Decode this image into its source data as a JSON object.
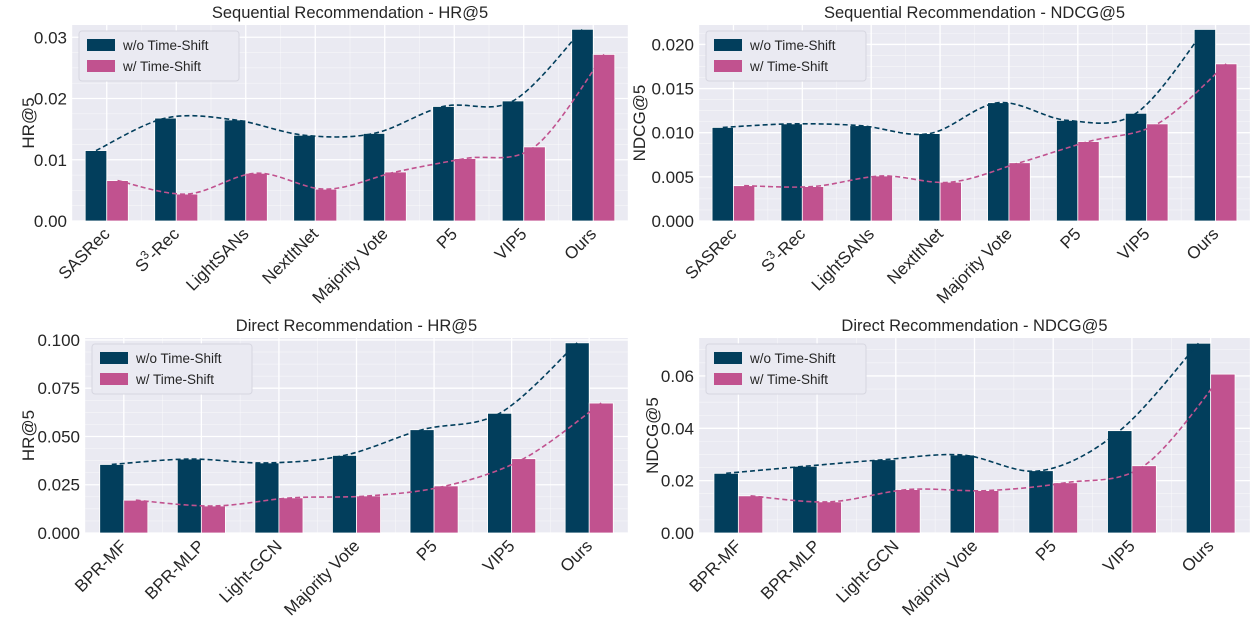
{
  "chart_data": [
    {
      "type": "bar",
      "title": "Sequential Recommendation - HR@5",
      "xlabel": "",
      "ylabel": "HR@5",
      "ylim": [
        0,
        0.032
      ],
      "yticks": [
        "0.00",
        "0.01",
        "0.02",
        "0.03"
      ],
      "categories": [
        "SASRec",
        "S³-Rec",
        "LightSANs",
        "NextItNet",
        "Majority Vote",
        "P5",
        "VIP5",
        "Ours"
      ],
      "series": [
        {
          "name": "w/o Time-Shift",
          "color": "#023e5c",
          "values": [
            0.0115,
            0.0168,
            0.0165,
            0.014,
            0.0143,
            0.0187,
            0.0196,
            0.0313
          ]
        },
        {
          "name": "w/ Time-Shift",
          "color": "#c1528f",
          "values": [
            0.0066,
            0.0044,
            0.0078,
            0.0052,
            0.008,
            0.0102,
            0.0121,
            0.0272
          ]
        }
      ],
      "legend": "top-left",
      "grid": true,
      "trend_lines": true
    },
    {
      "type": "bar",
      "title": "Sequential Recommendation - NDCG@5",
      "xlabel": "",
      "ylabel": "NDCG@5",
      "ylim": [
        0,
        0.0222
      ],
      "yticks": [
        "0.000",
        "0.005",
        "0.010",
        "0.015",
        "0.020"
      ],
      "categories": [
        "SASRec",
        "S³-Rec",
        "LightSANs",
        "NextItNet",
        "Majority Vote",
        "P5",
        "VIP5",
        "Ours"
      ],
      "series": [
        {
          "name": "w/o Time-Shift",
          "color": "#023e5c",
          "values": [
            0.0106,
            0.011,
            0.0108,
            0.0099,
            0.0134,
            0.0114,
            0.0122,
            0.0217
          ]
        },
        {
          "name": "w/ Time-Shift",
          "color": "#c1528f",
          "values": [
            0.004,
            0.0039,
            0.0051,
            0.0044,
            0.0066,
            0.009,
            0.011,
            0.0178
          ]
        }
      ],
      "legend": "top-left",
      "grid": true,
      "trend_lines": true
    },
    {
      "type": "bar",
      "title": "Direct Recommendation - HR@5",
      "xlabel": "",
      "ylabel": "HR@5",
      "ylim": [
        0,
        0.101
      ],
      "yticks": [
        "0.000",
        "0.025",
        "0.050",
        "0.075",
        "0.100"
      ],
      "categories": [
        "BPR-MF",
        "BPR-MLP",
        "Light-GCN",
        "Majority Vote",
        "P5",
        "VIP5",
        "Ours"
      ],
      "series": [
        {
          "name": "w/o Time-Shift",
          "color": "#023e5c",
          "values": [
            0.0355,
            0.0383,
            0.0363,
            0.0402,
            0.0535,
            0.062,
            0.0985
          ]
        },
        {
          "name": "w/ Time-Shift",
          "color": "#c1528f",
          "values": [
            0.017,
            0.014,
            0.0182,
            0.0192,
            0.0244,
            0.0385,
            0.0673
          ]
        }
      ],
      "legend": "top-left",
      "grid": true,
      "trend_lines": true
    },
    {
      "type": "bar",
      "title": "Direct Recommendation - NDCG@5",
      "xlabel": "",
      "ylabel": "NDCG@5",
      "ylim": [
        0,
        0.0745
      ],
      "yticks": [
        "0.00",
        "0.02",
        "0.04",
        "0.06"
      ],
      "categories": [
        "BPR-MF",
        "BPR-MLP",
        "Light-GCN",
        "Majority Vote",
        "P5",
        "VIP5",
        "Ours"
      ],
      "series": [
        {
          "name": "w/o Time-Shift",
          "color": "#023e5c",
          "values": [
            0.0228,
            0.0255,
            0.028,
            0.0298,
            0.0238,
            0.0391,
            0.0725
          ]
        },
        {
          "name": "w/ Time-Shift",
          "color": "#c1528f",
          "values": [
            0.0142,
            0.0119,
            0.0166,
            0.0162,
            0.0192,
            0.0257,
            0.0607
          ]
        }
      ],
      "legend": "top-left",
      "grid": true,
      "trend_lines": true
    }
  ]
}
